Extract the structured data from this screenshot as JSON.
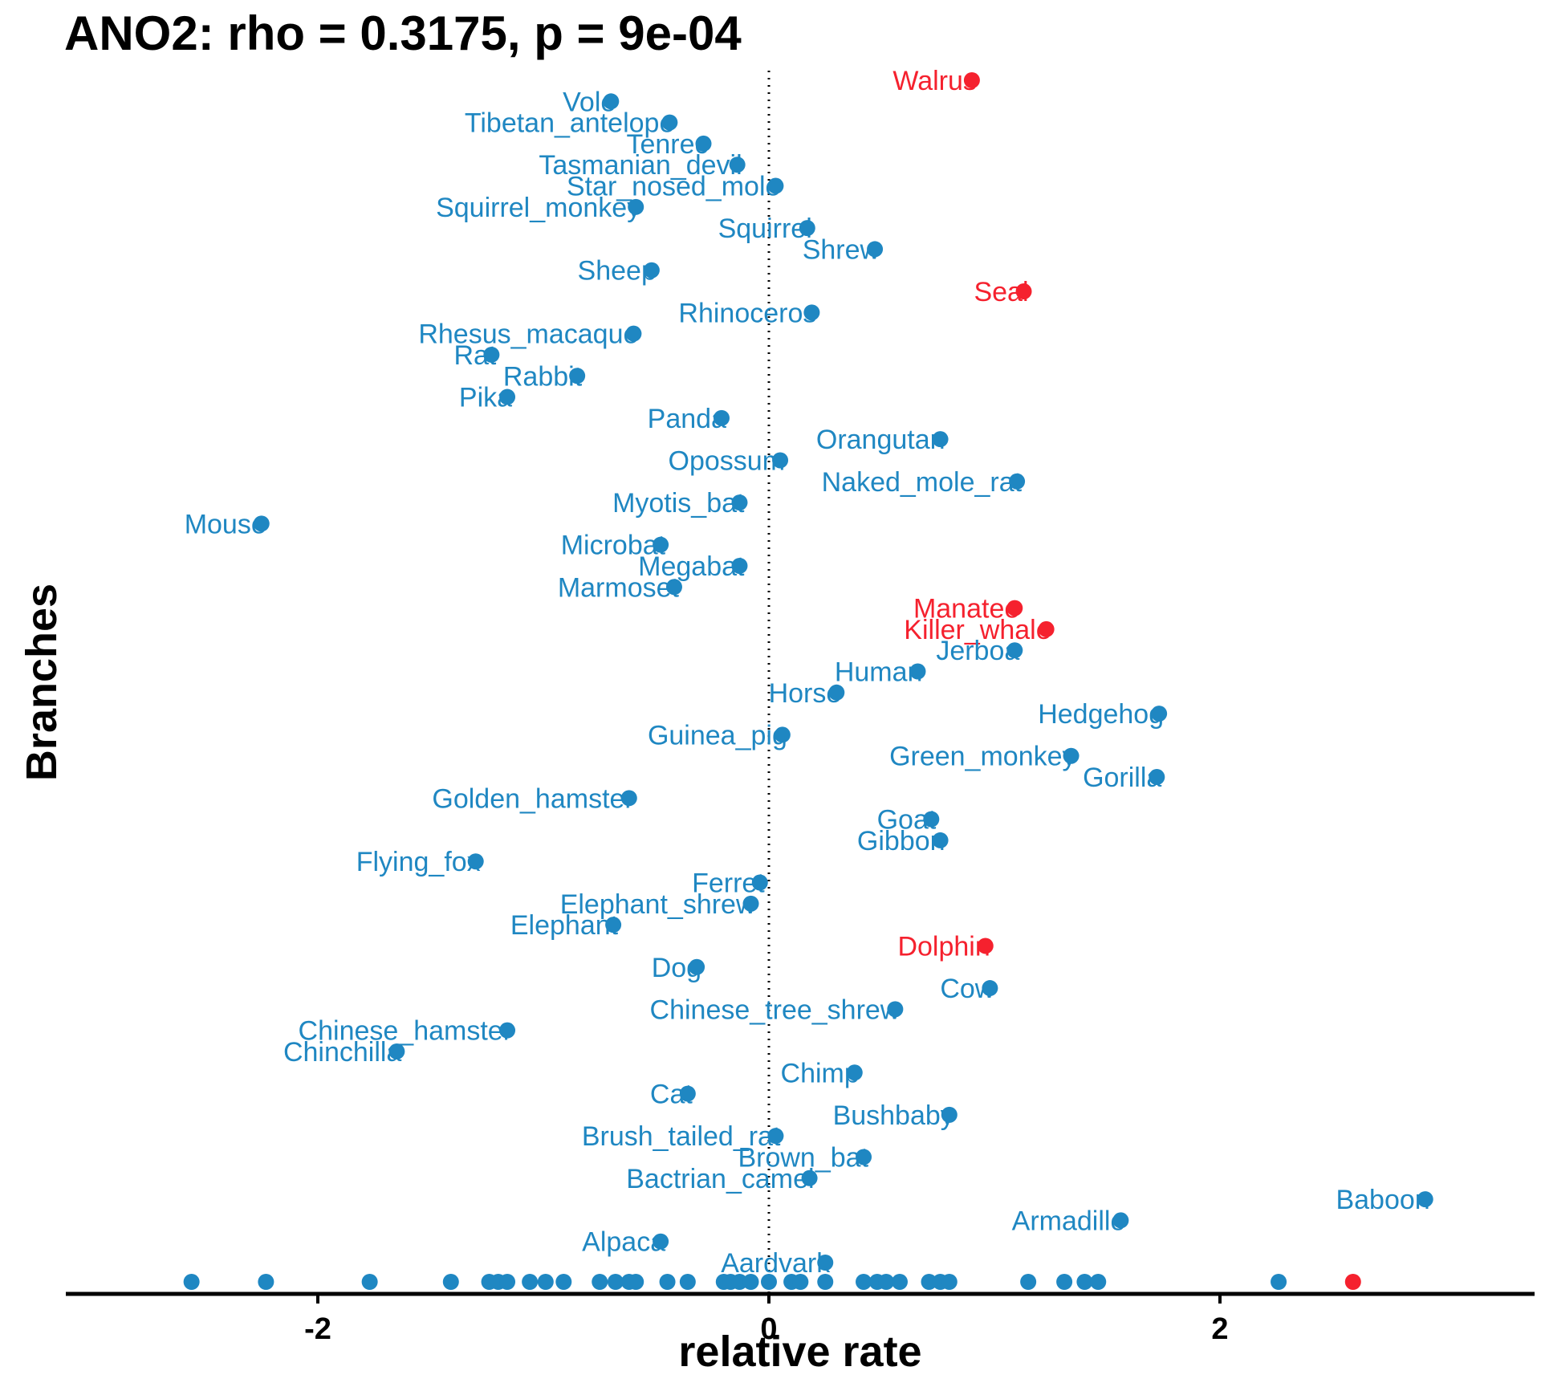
{
  "chart_data": {
    "type": "scatter",
    "title": "ANO2: rho = 0.3175, p = 9e-04",
    "xlabel": "relative rate",
    "ylabel": "Branches",
    "xlim": [
      -3.1,
      3.4
    ],
    "x_ticks": [
      {
        "value": -2,
        "label": "-2"
      },
      {
        "value": 0,
        "label": "0"
      },
      {
        "value": 2,
        "label": "2"
      }
    ],
    "colors": {
      "default": "#1F87C2",
      "highlight": "#F5212E",
      "zero_line": "#000000"
    },
    "reference_line_x": 0,
    "points": [
      {
        "name": "Walrus",
        "x": 0.9,
        "highlight": true
      },
      {
        "name": "Vole",
        "x": -0.7,
        "highlight": false
      },
      {
        "name": "Tibetan_antelope",
        "x": -0.44,
        "highlight": false
      },
      {
        "name": "Tenrec",
        "x": -0.29,
        "highlight": false
      },
      {
        "name": "Tasmanian_devil",
        "x": -0.14,
        "highlight": false
      },
      {
        "name": "Star_nosed_mole",
        "x": 0.03,
        "highlight": false
      },
      {
        "name": "Squirrel_monkey",
        "x": -0.59,
        "highlight": false
      },
      {
        "name": "Squirrel",
        "x": 0.17,
        "highlight": false
      },
      {
        "name": "Shrew",
        "x": 0.47,
        "highlight": false
      },
      {
        "name": "Sheep",
        "x": -0.52,
        "highlight": false
      },
      {
        "name": "Seal",
        "x": 1.13,
        "highlight": true
      },
      {
        "name": "Rhinoceros",
        "x": 0.19,
        "highlight": false
      },
      {
        "name": "Rhesus_macaque",
        "x": -0.6,
        "highlight": false
      },
      {
        "name": "Rat",
        "x": -1.23,
        "highlight": false
      },
      {
        "name": "Rabbit",
        "x": -0.85,
        "highlight": false
      },
      {
        "name": "Pika",
        "x": -1.16,
        "highlight": false
      },
      {
        "name": "Panda",
        "x": -0.21,
        "highlight": false
      },
      {
        "name": "Orangutan",
        "x": 0.76,
        "highlight": false
      },
      {
        "name": "Opossum",
        "x": 0.05,
        "highlight": false
      },
      {
        "name": "Naked_mole_rat",
        "x": 1.1,
        "highlight": false
      },
      {
        "name": "Myotis_bat",
        "x": -0.13,
        "highlight": false
      },
      {
        "name": "Mouse",
        "x": -2.25,
        "highlight": false
      },
      {
        "name": "Microbat",
        "x": -0.48,
        "highlight": false
      },
      {
        "name": "Megabat",
        "x": -0.13,
        "highlight": false
      },
      {
        "name": "Marmoset",
        "x": -0.42,
        "highlight": false
      },
      {
        "name": "Manatee",
        "x": 1.09,
        "highlight": true
      },
      {
        "name": "Killer_whale",
        "x": 1.23,
        "highlight": true
      },
      {
        "name": "Jerboa",
        "x": 1.09,
        "highlight": false
      },
      {
        "name": "Human",
        "x": 0.66,
        "highlight": false
      },
      {
        "name": "Horse",
        "x": 0.3,
        "highlight": false
      },
      {
        "name": "Hedgehog",
        "x": 1.73,
        "highlight": false
      },
      {
        "name": "Guinea_pig",
        "x": 0.06,
        "highlight": false
      },
      {
        "name": "Green_monkey",
        "x": 1.34,
        "highlight": false
      },
      {
        "name": "Gorilla",
        "x": 1.72,
        "highlight": false
      },
      {
        "name": "Golden_hamster",
        "x": -0.62,
        "highlight": false
      },
      {
        "name": "Goat",
        "x": 0.72,
        "highlight": false
      },
      {
        "name": "Gibbon",
        "x": 0.76,
        "highlight": false
      },
      {
        "name": "Flying_fox",
        "x": -1.3,
        "highlight": false
      },
      {
        "name": "Ferret",
        "x": -0.04,
        "highlight": false
      },
      {
        "name": "Elephant_shrew",
        "x": -0.08,
        "highlight": false
      },
      {
        "name": "Elephant",
        "x": -0.69,
        "highlight": false
      },
      {
        "name": "Dolphin",
        "x": 0.96,
        "highlight": true
      },
      {
        "name": "Dog",
        "x": -0.32,
        "highlight": false
      },
      {
        "name": "Cow",
        "x": 0.98,
        "highlight": false
      },
      {
        "name": "Chinese_tree_shrew",
        "x": 0.56,
        "highlight": false
      },
      {
        "name": "Chinese_hamster",
        "x": -1.16,
        "highlight": false
      },
      {
        "name": "Chinchilla",
        "x": -1.65,
        "highlight": false
      },
      {
        "name": "Chimp",
        "x": 0.38,
        "highlight": false
      },
      {
        "name": "Cat",
        "x": -0.36,
        "highlight": false
      },
      {
        "name": "Bushbaby",
        "x": 0.8,
        "highlight": false
      },
      {
        "name": "Brush_tailed_rat",
        "x": 0.03,
        "highlight": false
      },
      {
        "name": "Brown_bat",
        "x": 0.42,
        "highlight": false
      },
      {
        "name": "Bactrian_camel",
        "x": 0.18,
        "highlight": false
      },
      {
        "name": "Baboon",
        "x": 2.91,
        "highlight": false
      },
      {
        "name": "Armadillo",
        "x": 1.56,
        "highlight": false
      },
      {
        "name": "Alpaca",
        "x": -0.48,
        "highlight": false
      },
      {
        "name": "Aardvark",
        "x": 0.25,
        "highlight": false
      }
    ],
    "rug": [
      {
        "x": -2.56,
        "highlight": false
      },
      {
        "x": -2.23,
        "highlight": false
      },
      {
        "x": -1.77,
        "highlight": false
      },
      {
        "x": -1.41,
        "highlight": false
      },
      {
        "x": -1.24,
        "highlight": false
      },
      {
        "x": -1.2,
        "highlight": false
      },
      {
        "x": -1.16,
        "highlight": false
      },
      {
        "x": -1.06,
        "highlight": false
      },
      {
        "x": -0.99,
        "highlight": false
      },
      {
        "x": -0.91,
        "highlight": false
      },
      {
        "x": -0.75,
        "highlight": false
      },
      {
        "x": -0.68,
        "highlight": false
      },
      {
        "x": -0.62,
        "highlight": false
      },
      {
        "x": -0.59,
        "highlight": false
      },
      {
        "x": -0.45,
        "highlight": false
      },
      {
        "x": -0.36,
        "highlight": false
      },
      {
        "x": -0.2,
        "highlight": false
      },
      {
        "x": -0.17,
        "highlight": false
      },
      {
        "x": -0.13,
        "highlight": false
      },
      {
        "x": -0.08,
        "highlight": false
      },
      {
        "x": 0.0,
        "highlight": false
      },
      {
        "x": 0.1,
        "highlight": false
      },
      {
        "x": 0.14,
        "highlight": false
      },
      {
        "x": 0.25,
        "highlight": false
      },
      {
        "x": 0.42,
        "highlight": false
      },
      {
        "x": 0.48,
        "highlight": false
      },
      {
        "x": 0.52,
        "highlight": false
      },
      {
        "x": 0.58,
        "highlight": false
      },
      {
        "x": 0.71,
        "highlight": false
      },
      {
        "x": 0.76,
        "highlight": false
      },
      {
        "x": 0.8,
        "highlight": false
      },
      {
        "x": 1.15,
        "highlight": false
      },
      {
        "x": 1.31,
        "highlight": false
      },
      {
        "x": 1.4,
        "highlight": false
      },
      {
        "x": 1.46,
        "highlight": false
      },
      {
        "x": 2.26,
        "highlight": false
      },
      {
        "x": 2.59,
        "highlight": true
      }
    ]
  }
}
